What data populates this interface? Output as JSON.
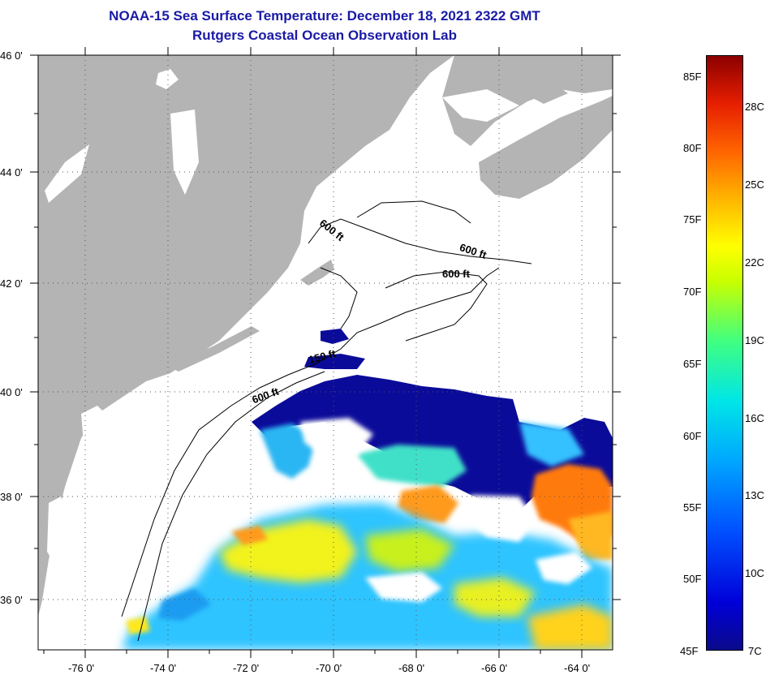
{
  "title": {
    "line1": "NOAA-15 Sea Surface Temperature:  December 18, 2021 2322 GMT",
    "line2": "Rutgers Coastal Ocean Observation Lab"
  },
  "map": {
    "lat_labels": [
      "46 0'",
      "44 0'",
      "42 0'",
      "40 0'",
      "38 0'",
      "36 0'"
    ],
    "lon_labels": [
      "-76 0'",
      "-74 0'",
      "-72 0'",
      "-70 0'",
      "-68 0'",
      "-66 0'",
      "-64 0'"
    ],
    "isobath_labels": [
      "600 ft",
      "600 ft",
      "600 ft",
      "150 ft",
      "600 ft"
    ],
    "colors": {
      "land": "#b4b4b4",
      "ocean": "#ffffff",
      "cold": "#0000a0",
      "mid": "#00b4ff",
      "warm": "#ffff00",
      "hot": "#ff6400"
    }
  },
  "colorbar": {
    "fahrenheit": [
      "85F",
      "80F",
      "75F",
      "70F",
      "65F",
      "60F",
      "55F",
      "50F",
      "45F"
    ],
    "celsius": [
      "28C",
      "25C",
      "22C",
      "19C",
      "16C",
      "13C",
      "10C",
      "7C"
    ],
    "range_f": [
      45,
      86
    ],
    "range_c": [
      7,
      30
    ]
  }
}
